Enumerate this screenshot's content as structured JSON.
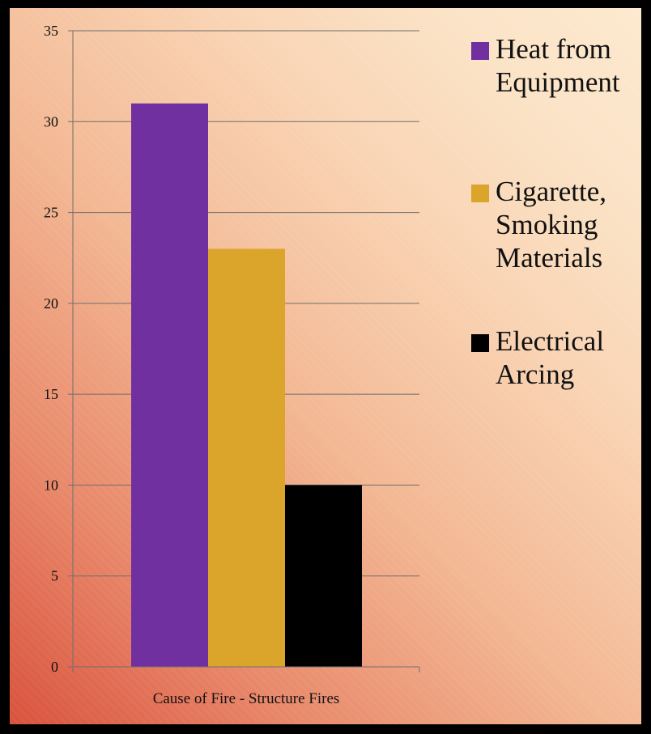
{
  "chart_data": {
    "type": "bar",
    "categories": [
      "Cause of Fire - Structure Fires"
    ],
    "series": [
      {
        "name": "Heat from Equipment",
        "values": [
          31
        ],
        "color": "#7030a0",
        "legend_lines": [
          "Heat from",
          "Equipment"
        ]
      },
      {
        "name": "Cigarette, Smoking Materials",
        "values": [
          23
        ],
        "color": "#daa52a",
        "legend_lines": [
          "Cigarette,",
          "Smoking",
          "Materials"
        ]
      },
      {
        "name": "Electrical Arcing",
        "values": [
          10
        ],
        "color": "#000000",
        "legend_lines": [
          "Electrical",
          "Arcing"
        ]
      }
    ],
    "ylim": [
      0,
      35
    ],
    "yticks": [
      0,
      5,
      10,
      15,
      20,
      25,
      30,
      35
    ],
    "grid": true,
    "legend_position": "right",
    "title": "",
    "xlabel": "",
    "ylabel": ""
  }
}
